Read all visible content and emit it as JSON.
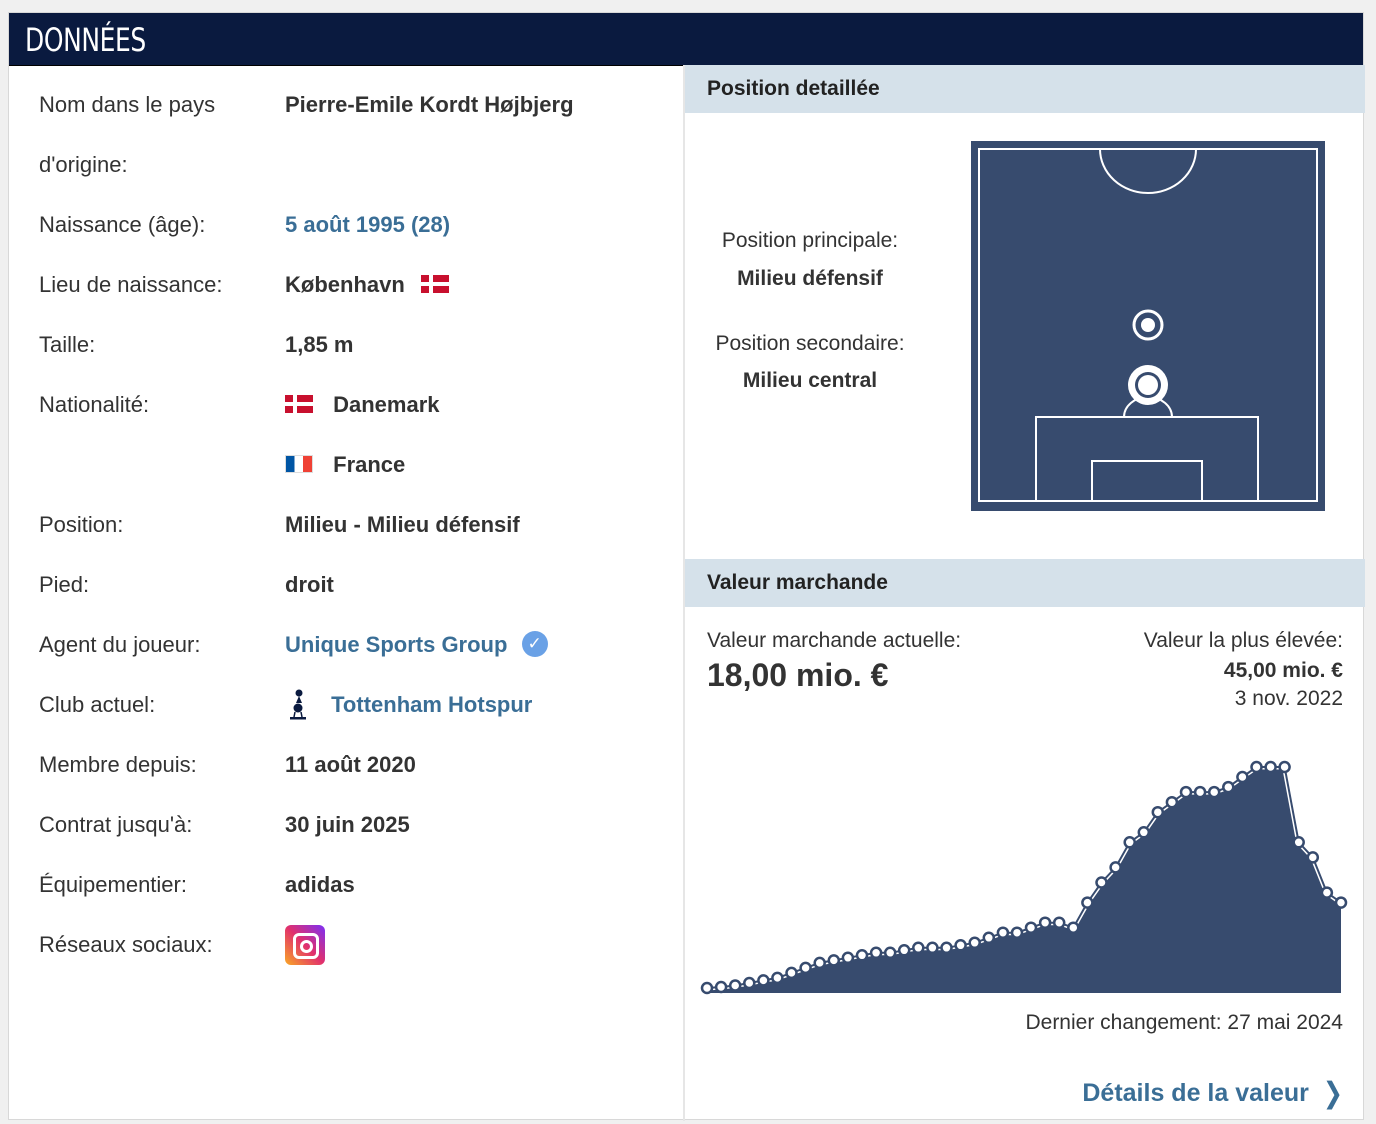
{
  "header": {
    "title": "DONNÉES"
  },
  "facts": [
    {
      "label": "Nom dans le pays",
      "value": "Pierre-Emile Kordt Højbjerg"
    },
    {
      "label": "d'origine:",
      "value": ""
    },
    {
      "label": "Naissance (âge):",
      "value": "5 août 1995 (28)"
    },
    {
      "label": "Lieu de naissance:",
      "value": "København"
    },
    {
      "label": "Taille:",
      "value": "1,85 m"
    },
    {
      "label": "Nationalité:",
      "value": "Danemark"
    },
    {
      "label": "",
      "value": "France"
    },
    {
      "label": "Position:",
      "value": "Milieu - Milieu défensif"
    },
    {
      "label": "Pied:",
      "value": "droit"
    },
    {
      "label": "Agent du joueur:",
      "value": "Unique Sports Group"
    },
    {
      "label": "Club actuel:",
      "value": "Tottenham Hotspur"
    },
    {
      "label": "Membre depuis:",
      "value": "11 août 2020"
    },
    {
      "label": "Contrat jusqu'à:",
      "value": "30 juin 2025"
    },
    {
      "label": "Équipementier:",
      "value": "adidas"
    },
    {
      "label": "Réseaux sociaux:",
      "value": ""
    }
  ],
  "icons": {
    "birthplace_flag": "denmark-flag-icon",
    "nat1_flag": "denmark-flag-icon",
    "nat2_flag": "france-flag-icon",
    "agent_badge": "verified-check-icon",
    "club_crest": "tottenham-crest-icon",
    "social": "instagram-icon"
  },
  "position": {
    "heading": "Position detaillée",
    "main_label": "Position principale:",
    "main_value": "Milieu défensif",
    "secondary_label": "Position secondaire:",
    "secondary_value": "Milieu central"
  },
  "market": {
    "heading": "Valeur marchande",
    "current_label": "Valeur marchande actuelle:",
    "current_value": "18,00 mio. €",
    "highest_label": "Valeur la plus élevée:",
    "highest_value": "45,00 mio. €",
    "highest_date": "3 nov. 2022",
    "last_change": "Dernier changement: 27 mai 2024",
    "details_link": "Détails de la valeur"
  },
  "colors": {
    "header_bg": "#0a1a3f",
    "pitch": "#374b6e",
    "section_bg": "#d5e1ea",
    "link": "#3a6e96",
    "chart_fill": "#374b6e"
  },
  "chart_data": {
    "type": "area",
    "values": [
      1,
      1.2,
      1.5,
      2,
      2.5,
      3,
      4,
      5,
      6,
      6.5,
      7,
      7.5,
      8,
      8,
      8.5,
      9,
      9,
      9,
      9.5,
      10,
      11,
      12,
      12,
      13,
      14,
      14,
      13,
      18,
      22,
      25,
      30,
      32,
      36,
      38,
      40,
      40,
      40,
      41,
      43,
      45,
      45,
      45,
      30,
      27,
      20,
      18
    ]
  }
}
